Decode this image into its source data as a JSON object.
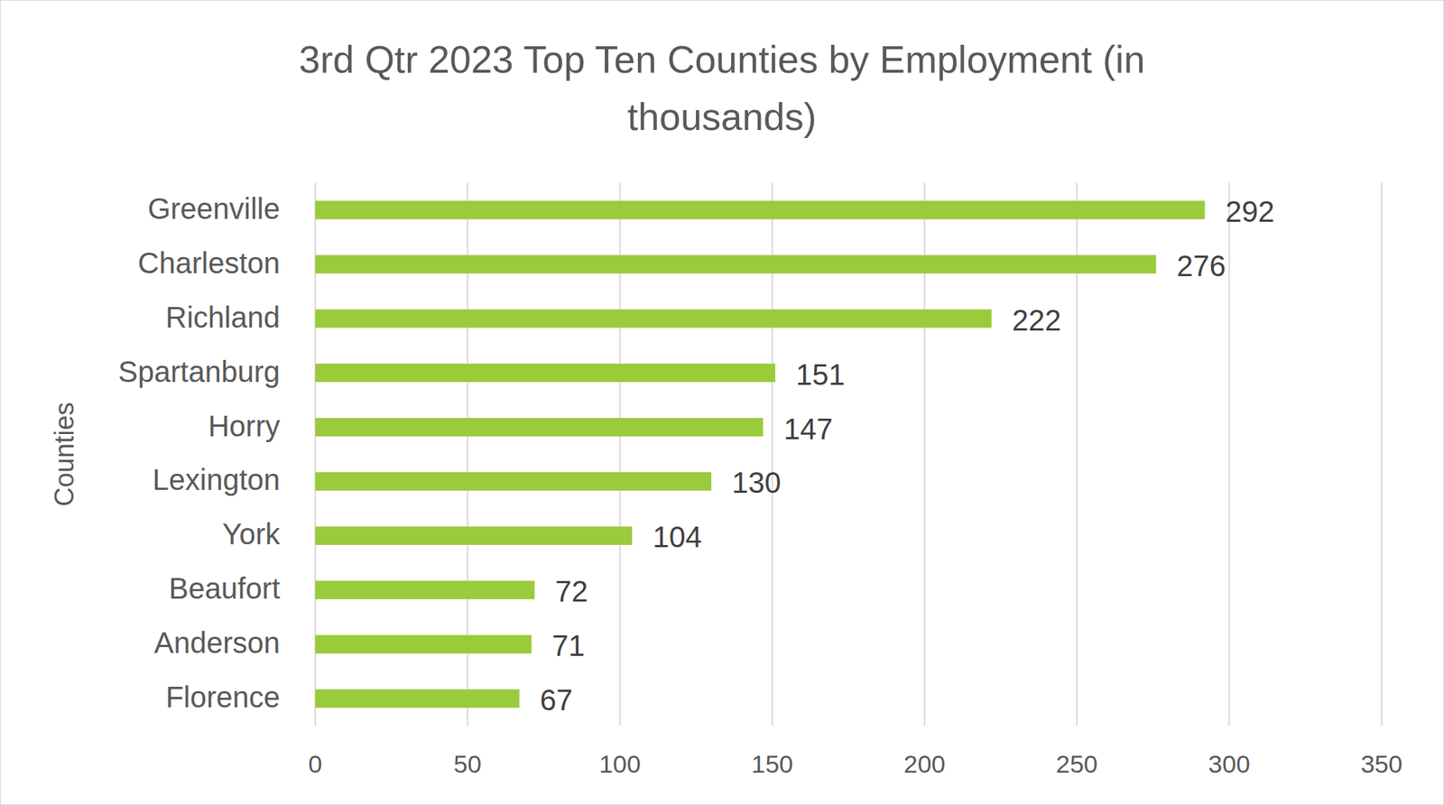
{
  "chart_data": {
    "type": "bar",
    "orientation": "horizontal",
    "title": "3rd Qtr 2023 Top Ten Counties by Employment (in thousands)",
    "ylabel": "Counties",
    "categories": [
      "Greenville",
      "Charleston",
      "Richland",
      "Spartanburg",
      "Horry",
      "Lexington",
      "York",
      "Beaufort",
      "Anderson",
      "Florence"
    ],
    "values": [
      292,
      276,
      222,
      151,
      147,
      130,
      104,
      72,
      71,
      67
    ],
    "color": "#9acb3b",
    "xlim": [
      0,
      350
    ],
    "xticks": [
      0,
      50,
      100,
      150,
      200,
      250,
      300,
      350
    ],
    "grid": true,
    "data_labels": true
  }
}
